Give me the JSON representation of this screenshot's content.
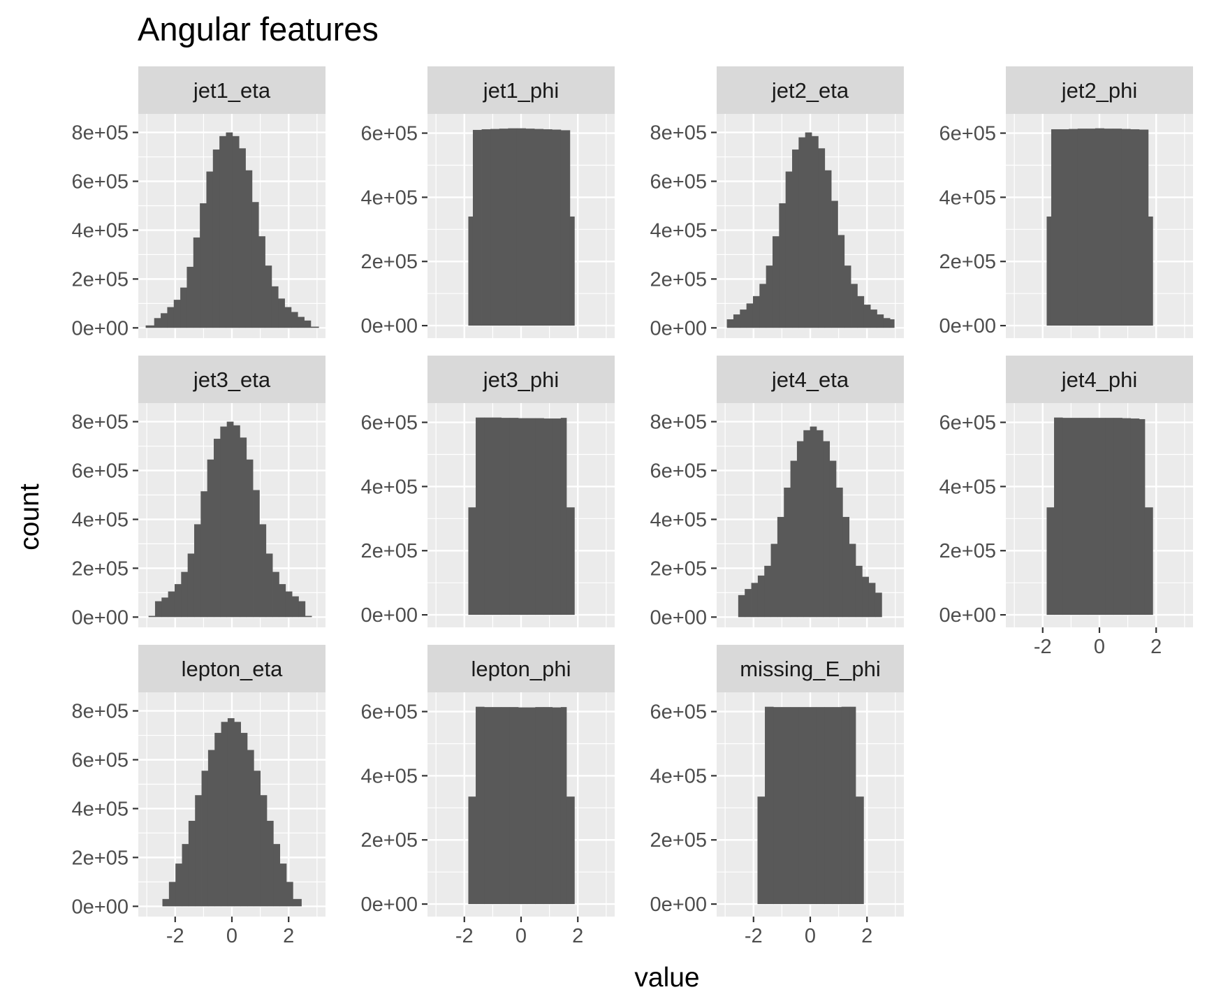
{
  "chart_data": {
    "type": "bar",
    "title": "Angular features",
    "xlabel": "value",
    "ylabel": "count",
    "grid": true,
    "x_ticks": [
      -2,
      0,
      2
    ],
    "eta_ylim": [
      -42000,
      876000
    ],
    "eta_y_ticks": [
      0,
      200000,
      400000,
      600000,
      800000
    ],
    "phi_ylim": [
      -39000,
      660000
    ],
    "phi_y_ticks": [
      0,
      200000,
      400000,
      600000
    ],
    "xlim": [
      -3.3,
      3.3
    ],
    "colors": {
      "bar": "#595959",
      "panel": "#ebebeb",
      "strip": "#d9d9d9"
    },
    "panels": [
      {
        "name": "jet1_eta",
        "row": 0,
        "col": 0,
        "scale": "eta",
        "x_start": [
          -3.04,
          -2.74,
          -2.51,
          -2.28,
          -2.05,
          -1.82,
          -1.59,
          -1.36,
          -1.13,
          -0.9,
          -0.67,
          -0.44,
          -0.21,
          0.02,
          0.25,
          0.48,
          0.71,
          0.94,
          1.17,
          1.4,
          1.63,
          1.86,
          2.09,
          2.32,
          2.55,
          2.78
        ],
        "x_end": 3.06,
        "values": [
          10000,
          40000,
          60000,
          85000,
          115000,
          165000,
          250000,
          370000,
          510000,
          640000,
          730000,
          785000,
          800000,
          785000,
          735000,
          645000,
          515000,
          375000,
          255000,
          170000,
          120000,
          85000,
          65000,
          45000,
          30000,
          5000
        ]
      },
      {
        "name": "jet1_phi",
        "row": 0,
        "col": 1,
        "scale": "phi",
        "x_start": [
          -1.86,
          -1.7,
          -1.39,
          -1.08,
          -0.77,
          -0.46,
          -0.15,
          0.16,
          0.47,
          0.78,
          1.09,
          1.4,
          1.72
        ],
        "x_end": 1.88,
        "values": [
          340000,
          610000,
          612000,
          613000,
          614000,
          615000,
          615000,
          614000,
          613000,
          612000,
          611000,
          609000,
          340000
        ]
      },
      {
        "name": "jet2_eta",
        "row": 0,
        "col": 2,
        "scale": "eta",
        "x_start": [
          -2.94,
          -2.71,
          -2.48,
          -2.25,
          -2.02,
          -1.79,
          -1.56,
          -1.33,
          -1.1,
          -0.87,
          -0.64,
          -0.41,
          -0.18,
          0.05,
          0.28,
          0.51,
          0.74,
          0.97,
          1.2,
          1.43,
          1.66,
          1.89,
          2.12,
          2.35,
          2.58,
          2.81
        ],
        "x_end": 2.96,
        "values": [
          35000,
          55000,
          75000,
          100000,
          130000,
          180000,
          255000,
          375000,
          510000,
          640000,
          730000,
          780000,
          800000,
          785000,
          735000,
          645000,
          520000,
          380000,
          255000,
          180000,
          130000,
          95000,
          75000,
          55000,
          40000,
          35000
        ]
      },
      {
        "name": "jet2_phi",
        "row": 0,
        "col": 3,
        "scale": "phi",
        "x_start": [
          -1.86,
          -1.7,
          -1.39,
          -1.08,
          -0.77,
          -0.46,
          -0.15,
          0.16,
          0.47,
          0.78,
          1.09,
          1.4,
          1.72
        ],
        "x_end": 1.88,
        "values": [
          340000,
          612000,
          612000,
          613000,
          614000,
          614000,
          615000,
          614000,
          614000,
          613000,
          612000,
          611000,
          340000
        ]
      },
      {
        "name": "jet3_eta",
        "row": 1,
        "col": 0,
        "scale": "eta",
        "x_start": [
          -2.94,
          -2.71,
          -2.48,
          -2.25,
          -2.02,
          -1.79,
          -1.56,
          -1.33,
          -1.1,
          -0.87,
          -0.64,
          -0.41,
          -0.18,
          0.05,
          0.28,
          0.51,
          0.74,
          0.97,
          1.2,
          1.43,
          1.66,
          1.89,
          2.12,
          2.35,
          2.58,
          2.81
        ],
        "x_end": 2.96,
        "values": [
          5000,
          65000,
          80000,
          105000,
          135000,
          185000,
          260000,
          380000,
          515000,
          645000,
          730000,
          780000,
          800000,
          785000,
          735000,
          645000,
          520000,
          380000,
          260000,
          185000,
          135000,
          105000,
          85000,
          65000,
          5000,
          0
        ]
      },
      {
        "name": "jet3_phi",
        "row": 1,
        "col": 1,
        "scale": "phi",
        "x_start": [
          -1.86,
          -1.6,
          -1.3,
          -1.0,
          -0.7,
          -0.4,
          -0.1,
          0.2,
          0.5,
          0.8,
          1.1,
          1.4,
          1.6
        ],
        "x_end": 1.88,
        "values": [
          335000,
          615000,
          615000,
          615000,
          614000,
          614000,
          613000,
          613000,
          613000,
          612000,
          612000,
          614000,
          335000
        ]
      },
      {
        "name": "jet4_eta",
        "row": 1,
        "col": 2,
        "scale": "eta",
        "x_start": [
          -2.54,
          -2.31,
          -2.08,
          -1.85,
          -1.62,
          -1.39,
          -1.16,
          -0.93,
          -0.7,
          -0.47,
          -0.24,
          -0.01,
          0.22,
          0.45,
          0.68,
          0.91,
          1.14,
          1.37,
          1.6,
          1.83,
          2.06,
          2.29
        ],
        "x_end": 2.52,
        "values": [
          90000,
          115000,
          140000,
          170000,
          210000,
          300000,
          410000,
          530000,
          640000,
          720000,
          765000,
          780000,
          765000,
          720000,
          640000,
          530000,
          410000,
          300000,
          210000,
          165000,
          140000,
          100000
        ]
      },
      {
        "name": "jet4_phi",
        "row": 1,
        "col": 3,
        "scale": "phi",
        "x_start": [
          -1.86,
          -1.6,
          -1.3,
          -1.0,
          -0.7,
          -0.4,
          -0.1,
          0.2,
          0.5,
          0.8,
          1.1,
          1.4,
          1.6
        ],
        "x_end": 1.88,
        "values": [
          335000,
          615000,
          614000,
          614000,
          614000,
          614000,
          614000,
          614000,
          614000,
          613000,
          612000,
          610000,
          335000
        ]
      },
      {
        "name": "lepton_eta",
        "row": 2,
        "col": 0,
        "scale": "eta",
        "x_start": [
          -2.45,
          -2.22,
          -1.99,
          -1.76,
          -1.53,
          -1.3,
          -1.07,
          -0.84,
          -0.61,
          -0.38,
          -0.15,
          0.08,
          0.31,
          0.54,
          0.77,
          1.0,
          1.23,
          1.46,
          1.69,
          1.92,
          2.15
        ],
        "x_end": 2.45,
        "values": [
          30000,
          100000,
          175000,
          255000,
          350000,
          455000,
          555000,
          640000,
          710000,
          755000,
          770000,
          755000,
          710000,
          640000,
          555000,
          455000,
          350000,
          255000,
          175000,
          100000,
          30000
        ]
      },
      {
        "name": "lepton_phi",
        "row": 2,
        "col": 1,
        "scale": "phi",
        "x_start": [
          -1.86,
          -1.6,
          -1.3,
          -1.0,
          -0.7,
          -0.4,
          -0.1,
          0.2,
          0.5,
          0.8,
          1.1,
          1.4,
          1.6
        ],
        "x_end": 1.88,
        "values": [
          335000,
          615000,
          614000,
          614000,
          614000,
          614000,
          613000,
          613000,
          614000,
          614000,
          613000,
          614000,
          335000
        ]
      },
      {
        "name": "missing_E_phi",
        "row": 2,
        "col": 2,
        "scale": "phi",
        "x_start": [
          -1.86,
          -1.6,
          -1.3,
          -1.0,
          -0.7,
          -0.4,
          -0.1,
          0.2,
          0.5,
          0.8,
          1.1,
          1.4,
          1.6
        ],
        "x_end": 1.88,
        "values": [
          335000,
          615000,
          614000,
          614000,
          614000,
          614000,
          614000,
          614000,
          614000,
          614000,
          615000,
          615000,
          335000
        ]
      }
    ]
  }
}
